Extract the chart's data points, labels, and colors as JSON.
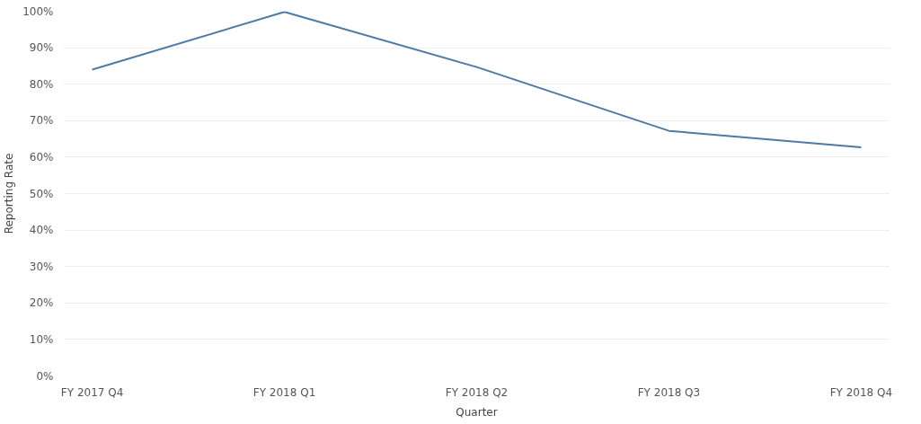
{
  "chart_data": {
    "type": "line",
    "xlabel": "Quarter",
    "ylabel": "Reporting Rate",
    "categories": [
      "FY 2017 Q4",
      "FY 2018 Q1",
      "FY 2018 Q2",
      "FY 2018 Q3",
      "FY 2018 Q4"
    ],
    "series": [
      {
        "color": "#4e79a7",
        "values": [
          84.0,
          99.8,
          84.7,
          67.2,
          62.7
        ]
      }
    ],
    "ylim": [
      0,
      100
    ],
    "yticks": [
      {
        "value": 0,
        "label": "0%"
      },
      {
        "value": 10,
        "label": "10%"
      },
      {
        "value": 20,
        "label": "20%"
      },
      {
        "value": 30,
        "label": "30%"
      },
      {
        "value": 40,
        "label": "40%"
      },
      {
        "value": 50,
        "label": "50%"
      },
      {
        "value": 60,
        "label": "60%"
      },
      {
        "value": 70,
        "label": "70%"
      },
      {
        "value": 80,
        "label": "80%"
      },
      {
        "value": 90,
        "label": "90%"
      },
      {
        "value": 100,
        "label": "100%"
      }
    ],
    "grid": "y",
    "line_style": "solid"
  }
}
